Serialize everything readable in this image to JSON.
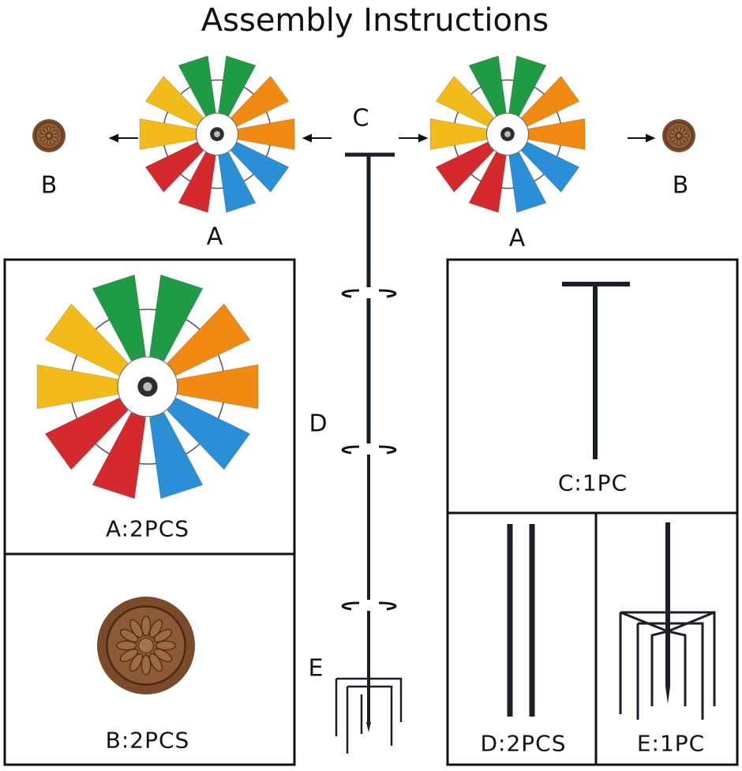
{
  "title": "Assembly Instructions",
  "labels": {
    "a": "A",
    "b": "B",
    "c": "C",
    "d": "D",
    "e": "E"
  },
  "parts": [
    {
      "id": "A",
      "caption": "A:2PCS"
    },
    {
      "id": "B",
      "caption": "B:2PCS"
    },
    {
      "id": "C",
      "caption": "C:1PC"
    },
    {
      "id": "D",
      "caption": "D:2PCS"
    },
    {
      "id": "E",
      "caption": "E:1PC"
    }
  ],
  "colors": {
    "green": "#1f9a45",
    "orange": "#f08a12",
    "blue": "#2a8fd6",
    "red": "#d42a2e",
    "yellow": "#f2bb1a",
    "bronze": "#7a4a2a",
    "pole": "#1a1f2b"
  },
  "blade_order": [
    "green",
    "green",
    "orange",
    "orange",
    "blue",
    "blue",
    "red",
    "red",
    "yellow",
    "yellow"
  ]
}
